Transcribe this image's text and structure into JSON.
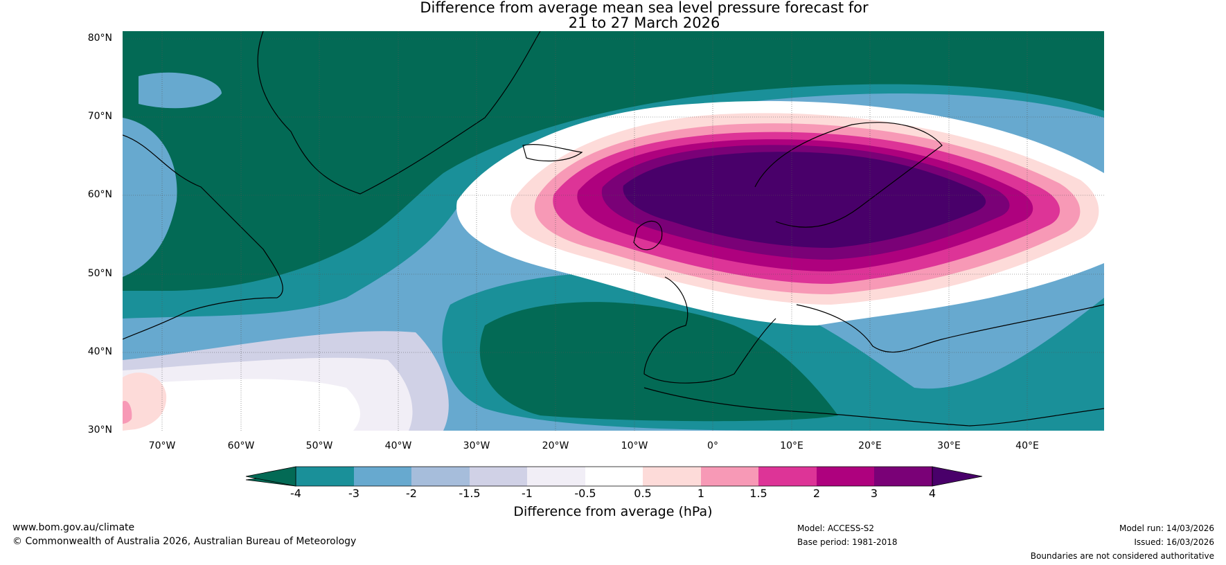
{
  "title": {
    "line1": "Difference from average mean sea level pressure forecast for",
    "line2": "21 to 27 March 2026"
  },
  "map": {
    "lat_labels": [
      "80°N",
      "70°N",
      "60°N",
      "50°N",
      "40°N",
      "30°N"
    ],
    "lon_labels": [
      "70°W",
      "60°W",
      "50°W",
      "40°W",
      "30°W",
      "20°W",
      "10°W",
      "0°",
      "10°E",
      "20°E",
      "30°E",
      "40°E"
    ],
    "extent": {
      "lon_min": -75,
      "lon_max": 50,
      "lat_min": 30,
      "lat_max": 81
    },
    "anomaly_regions": [
      {
        "name": "scandinavia-high",
        "sign": "positive",
        "peak_hpa": 4,
        "center": "60°N 20°E"
      },
      {
        "name": "greenland-low",
        "sign": "negative",
        "peak_hpa": -4,
        "center": "72°N 40°W"
      },
      {
        "name": "iberia-atlantic-low",
        "sign": "negative",
        "peak_hpa": -4,
        "center": "40°N 15°W"
      },
      {
        "name": "labrador-low",
        "sign": "negative",
        "peak_hpa": -4,
        "center": "55°N 60°W"
      }
    ]
  },
  "colorbar": {
    "ticks": [
      "-4",
      "-3",
      "-2",
      "-1.5",
      "-1",
      "-0.5",
      "0.5",
      "1",
      "1.5",
      "2",
      "3",
      "4"
    ],
    "colors": [
      "#036a55",
      "#1a9099",
      "#67a9cf",
      "#a6bddb",
      "#d0d1e6",
      "#f1eef6",
      "#ffffff",
      "#fddbd9",
      "#f799b6",
      "#dd3497",
      "#ae017e",
      "#7a0177",
      "#49006a"
    ],
    "label": "Difference from average (hPa)"
  },
  "footer": {
    "website": "www.bom.gov.au/climate",
    "copyright": "© Commonwealth of Australia 2026, Australian Bureau of Meteorology",
    "model": "Model: ACCESS-S2",
    "base_period": "Base period: 1981-2018",
    "model_run": "Model run: 14/03/2026",
    "issued": "Issued: 16/03/2026",
    "disclaimer": "Boundaries are not considered authoritative"
  }
}
